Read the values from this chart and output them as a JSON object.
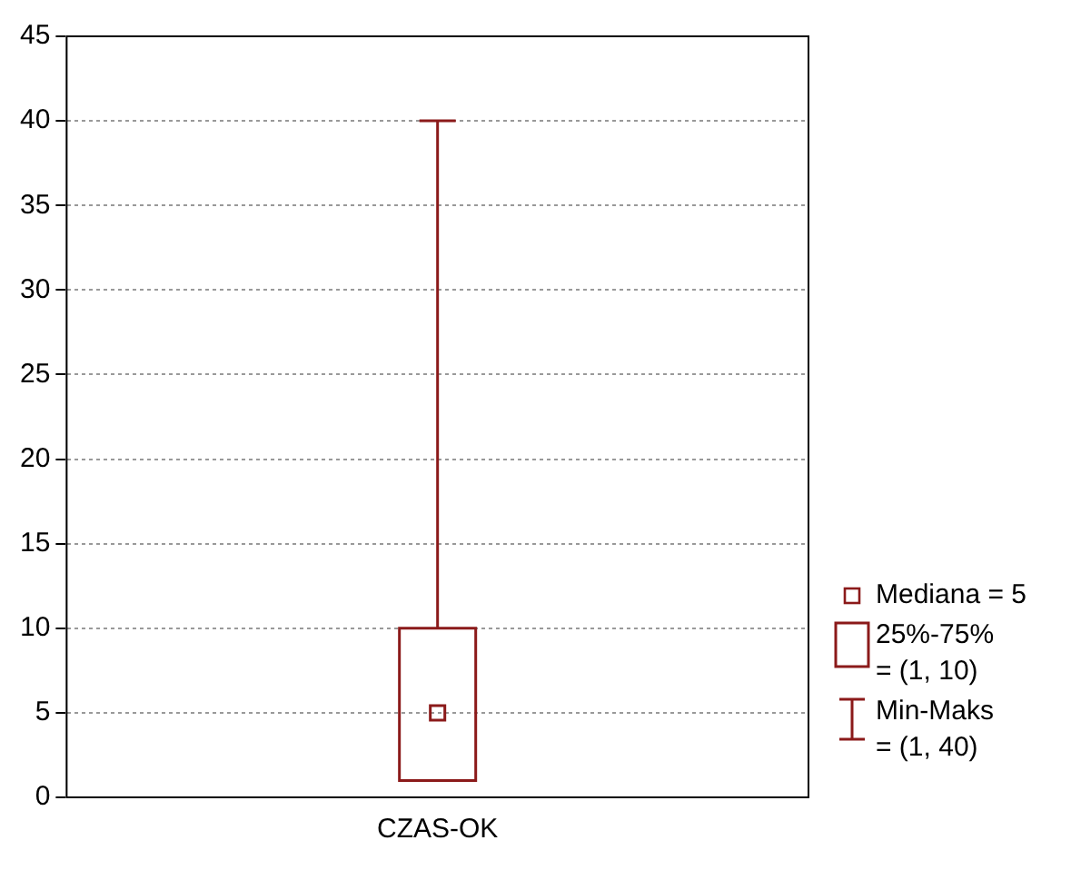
{
  "chart_data": {
    "type": "box",
    "categories": [
      "CZAS-OK"
    ],
    "color": "#8b1a1a",
    "boxes": [
      {
        "low": 1,
        "q1": 1,
        "median": 5,
        "q3": 10,
        "high": 40
      }
    ],
    "ylim": [
      0,
      45
    ],
    "yticks": [
      0,
      5,
      10,
      15,
      20,
      25,
      30,
      35,
      40,
      45
    ],
    "grid": "y",
    "marker": "square",
    "annotations": [
      "Mediana = 5",
      "25%-75%\n= (1, 10)",
      "Min-Maks\n= (1, 40)"
    ]
  }
}
